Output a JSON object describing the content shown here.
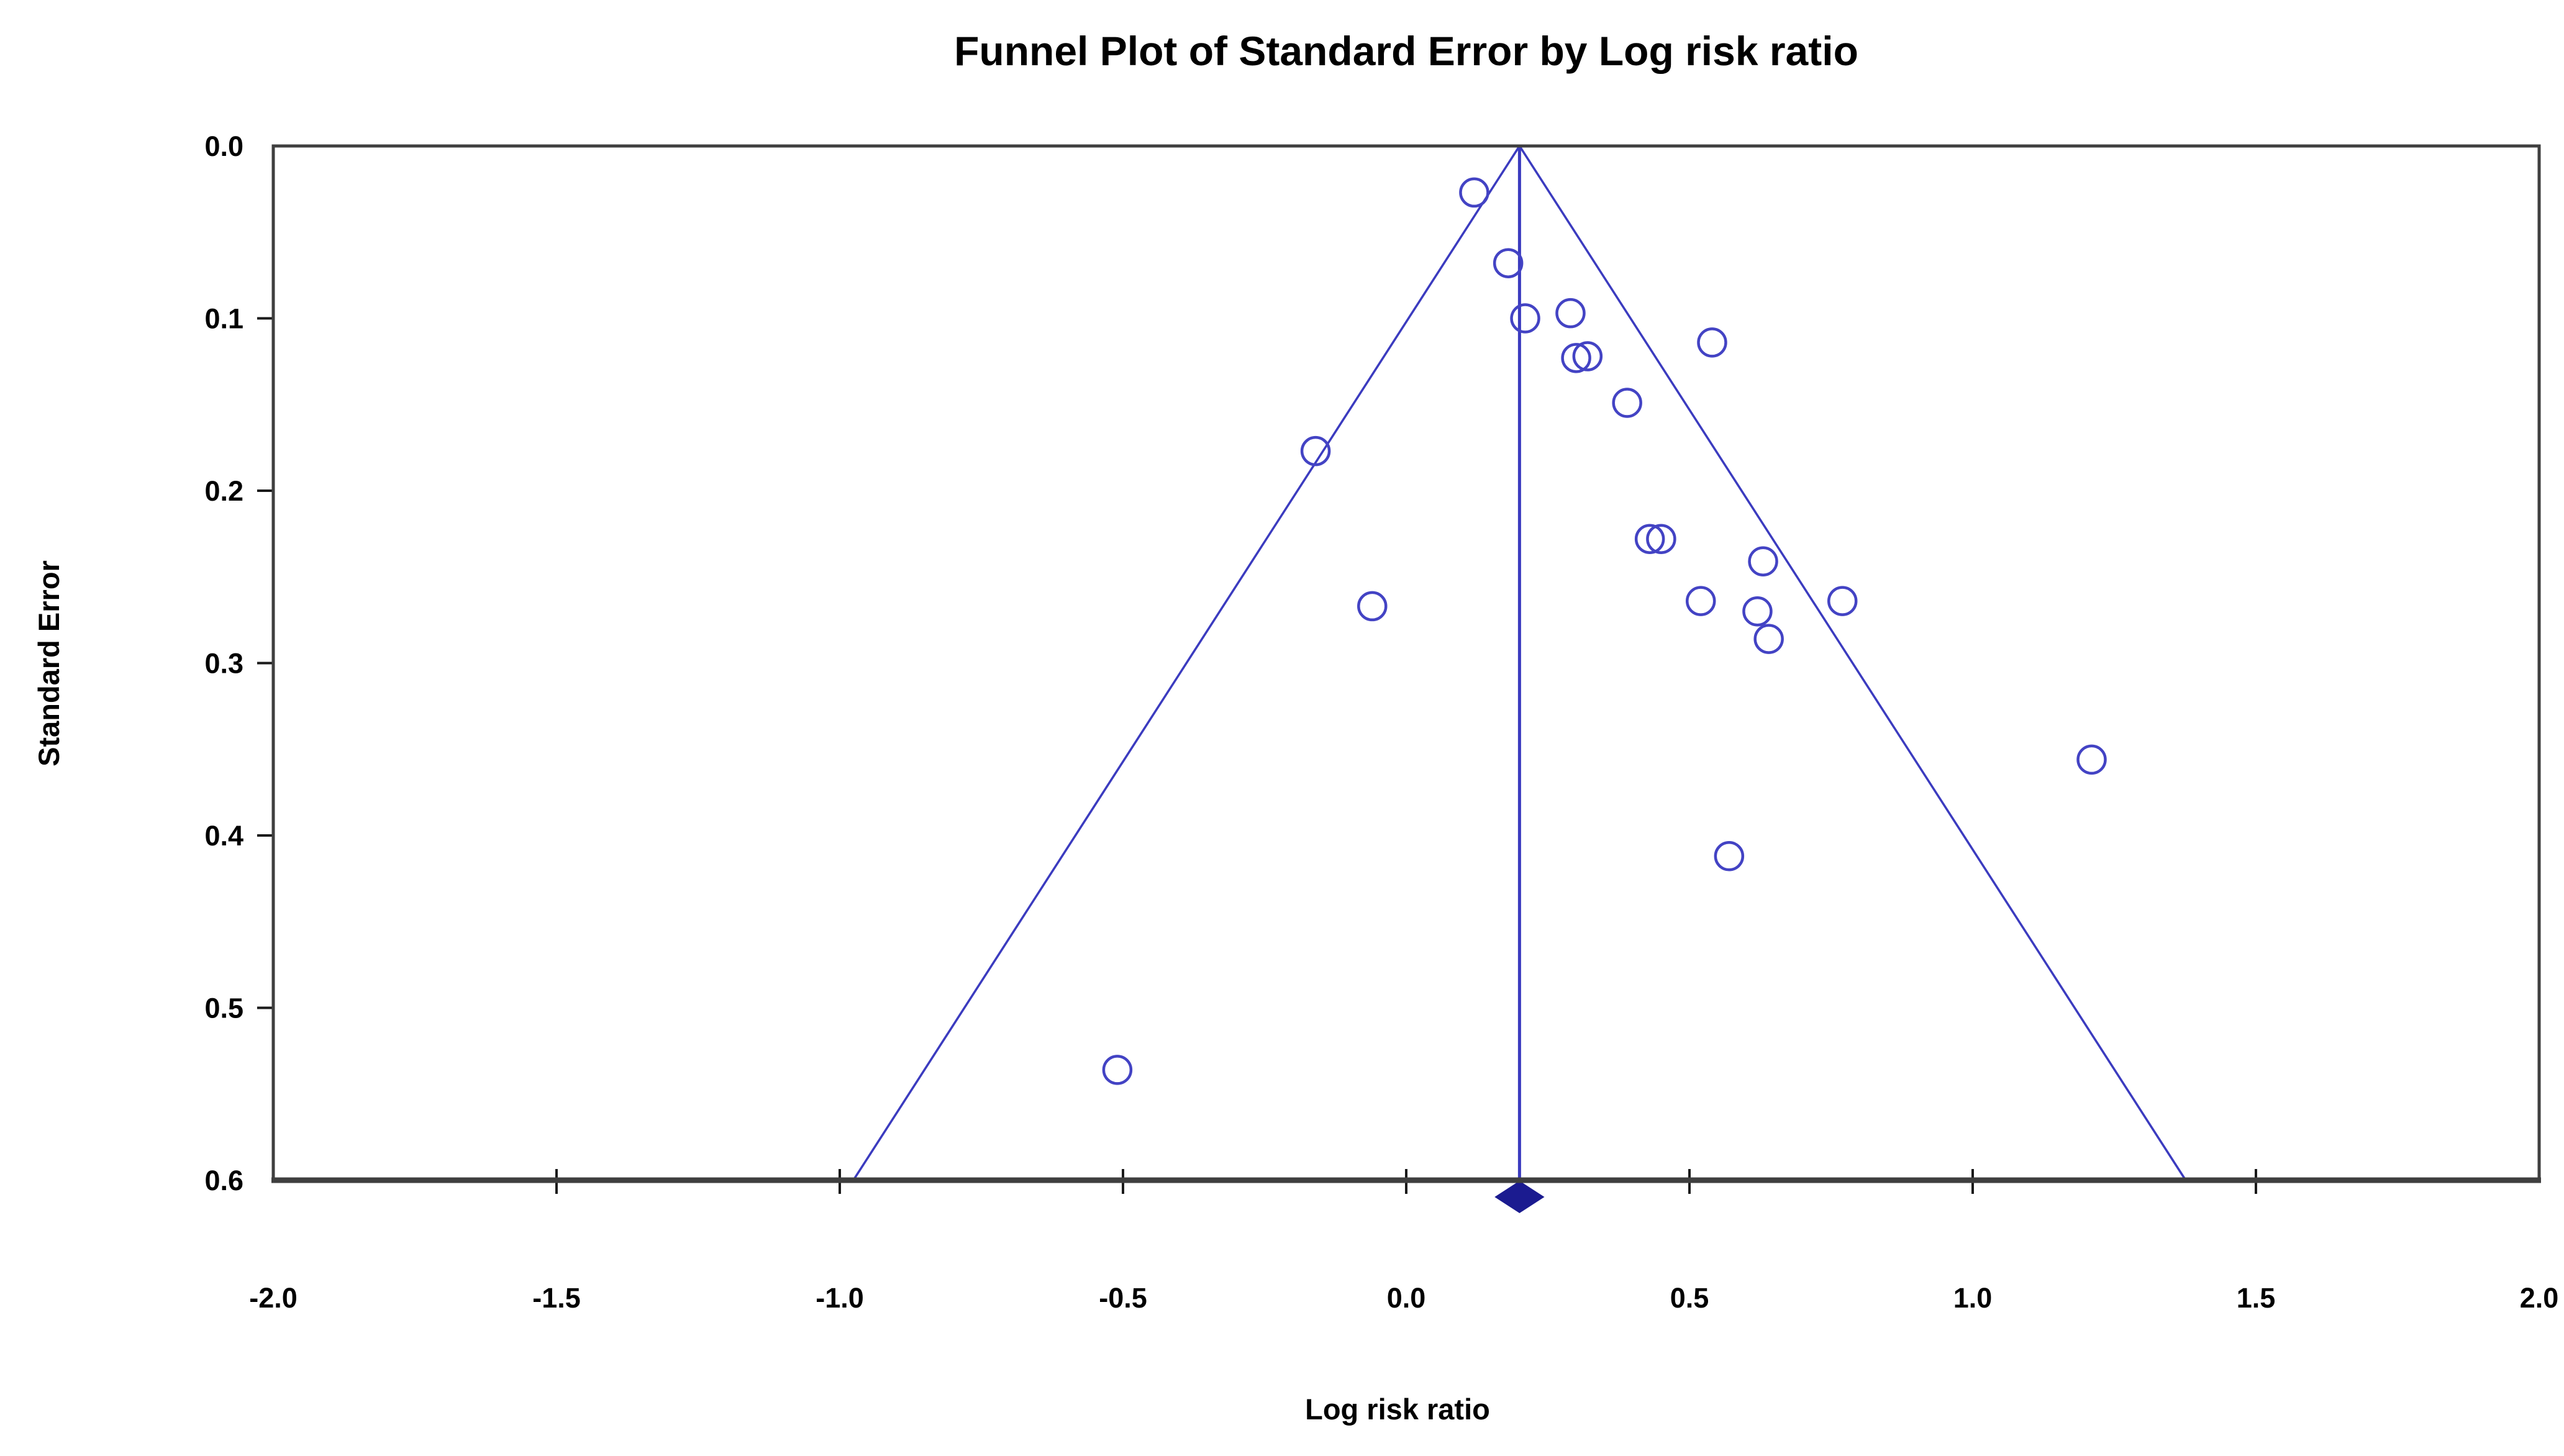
{
  "chart_data": {
    "type": "scatter",
    "subtype": "funnel-plot",
    "title": "Funnel Plot of Standard Error by Log risk ratio",
    "xlabel": "Log risk ratio",
    "ylabel": "Standard Error",
    "xlim": [
      -2.0,
      2.0
    ],
    "ylim": [
      0.0,
      0.6
    ],
    "y_axis_inverted_downward": true,
    "grid": false,
    "x_ticks": [
      -2.0,
      -1.5,
      -1.0,
      -0.5,
      0.0,
      0.5,
      1.0,
      1.5,
      2.0
    ],
    "x_tick_labels": [
      "-2.0",
      "-1.5",
      "-1.0",
      "-0.5",
      "0.0",
      "0.5",
      "1.0",
      "1.5",
      "2.0"
    ],
    "y_ticks": [
      0.0,
      0.1,
      0.2,
      0.3,
      0.4,
      0.5,
      0.6
    ],
    "y_tick_labels": [
      "0.0",
      "0.1",
      "0.2",
      "0.3",
      "0.4",
      "0.5",
      "0.6"
    ],
    "points_note": "each point = one study: [log_risk_ratio, standard_error]",
    "points": [
      [
        0.12,
        0.027
      ],
      [
        0.18,
        0.068
      ],
      [
        0.21,
        0.1
      ],
      [
        0.29,
        0.097
      ],
      [
        0.3,
        0.123
      ],
      [
        0.32,
        0.122
      ],
      [
        0.54,
        0.114
      ],
      [
        0.39,
        0.149
      ],
      [
        -0.16,
        0.177
      ],
      [
        0.43,
        0.228
      ],
      [
        0.45,
        0.228
      ],
      [
        0.63,
        0.241
      ],
      [
        0.52,
        0.264
      ],
      [
        0.77,
        0.264
      ],
      [
        0.62,
        0.27
      ],
      [
        0.64,
        0.286
      ],
      [
        -0.06,
        0.267
      ],
      [
        0.57,
        0.412
      ],
      [
        1.21,
        0.356
      ],
      [
        -0.51,
        0.536
      ]
    ],
    "funnel": {
      "apex_log_risk_ratio": 0.2,
      "z_value": 1.96,
      "max_se": 0.6,
      "bottom_left_x": -0.976,
      "bottom_right_x": 1.376
    },
    "pooled_estimate": {
      "log_risk_ratio": 0.2,
      "marker": "filled-diamond",
      "diamond_half_width_x_units": 0.044
    },
    "colors": {
      "funnel_line": "#3b3bbf",
      "center_line": "#3b3bbf",
      "study_marker_stroke": "#4343c4",
      "diamond_fill": "#1b1b90",
      "axis_frame": "#3f3f3f",
      "tick_mark": "#1a1a1a",
      "text": "#000000",
      "background": "#ffffff"
    }
  }
}
